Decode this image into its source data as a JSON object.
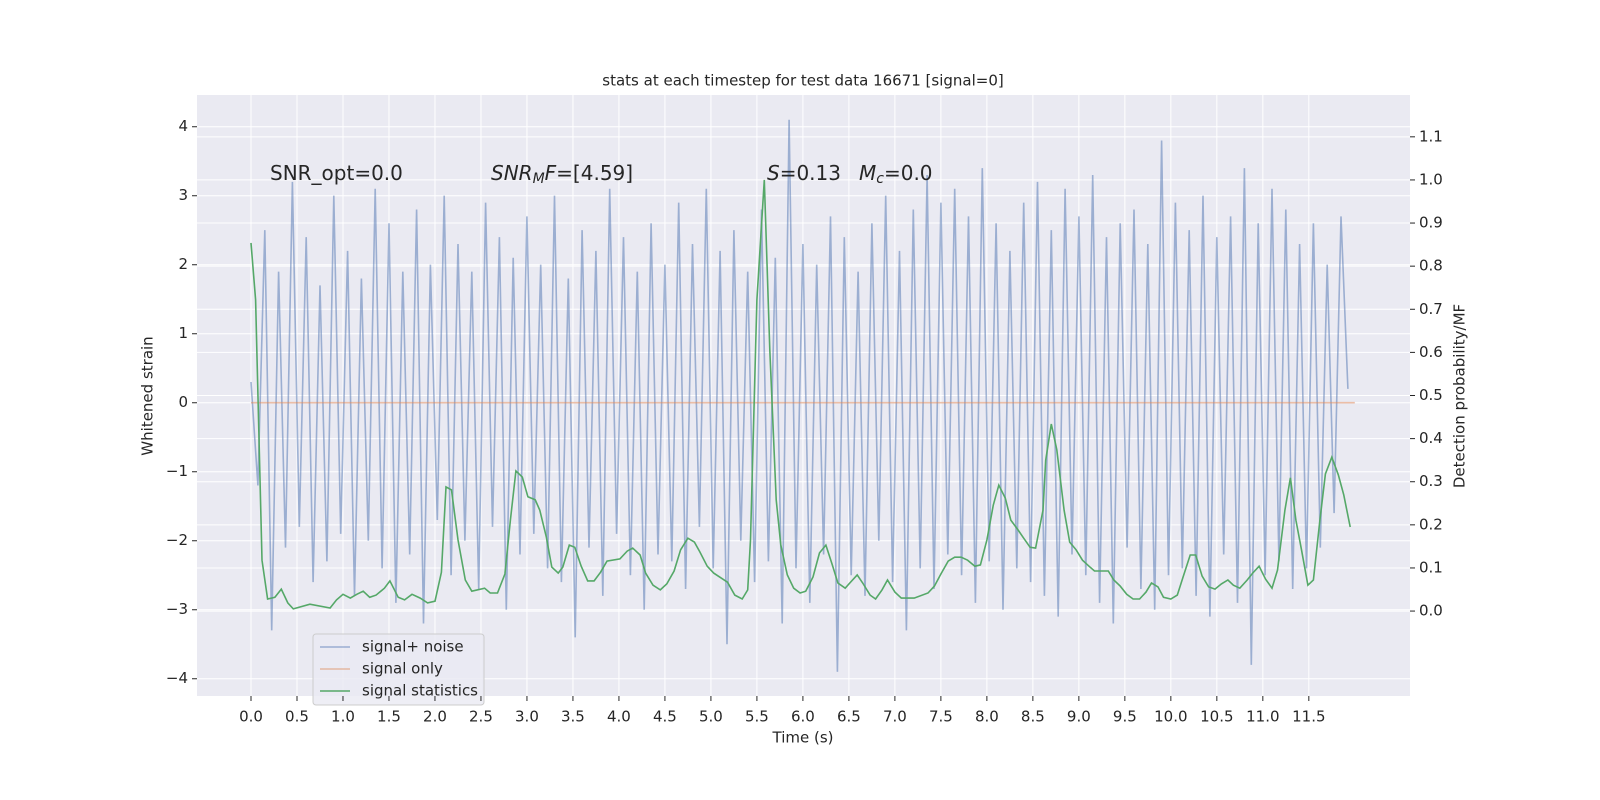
{
  "chart_data": {
    "type": "line",
    "title": "stats at each timestep for test data 16671 [signal=0]",
    "xlabel": "Time (s)",
    "ylabel": "Whitened strain",
    "y2label": "Detection probability/MF",
    "xlim": [
      -0.587,
      12.6
    ],
    "ylim": [
      -4.25,
      4.46
    ],
    "y2lim": [
      -0.197,
      1.197
    ],
    "grid": true,
    "xticks": [
      {
        "value": 0,
        "label": "0.0"
      },
      0.5,
      {
        "value": 1,
        "label": "1.0"
      },
      1.5,
      {
        "value": 2,
        "label": "2.0"
      },
      2.5,
      {
        "value": 3,
        "label": "3.0"
      },
      3.5,
      {
        "value": 4,
        "label": "4.0"
      },
      4.5,
      {
        "value": 5,
        "label": "5.0"
      },
      5.5,
      {
        "value": 6,
        "label": "6.0"
      },
      6.5,
      {
        "value": 7,
        "label": "7.0"
      },
      7.5,
      {
        "value": 8,
        "label": "8.0"
      },
      8.5,
      {
        "value": 9,
        "label": "9.0"
      },
      9.5,
      {
        "value": 10,
        "label": "10.0"
      },
      10.5,
      {
        "value": 11,
        "label": "11.0"
      },
      11.5
    ],
    "yticks": [
      {
        "value": -4,
        "label": "−4"
      },
      {
        "value": -3,
        "label": "−3"
      },
      {
        "value": -2,
        "label": "−2"
      },
      {
        "value": -1,
        "label": "−1"
      },
      0,
      1,
      2,
      3,
      4
    ],
    "y2ticks": [
      {
        "value": 0,
        "label": "0.0"
      },
      0.1,
      0.2,
      0.3,
      0.4,
      0.5,
      0.6,
      0.7,
      0.8,
      0.9,
      {
        "value": 1,
        "label": "1.0"
      },
      1.1
    ],
    "annotations": [
      [
        "SNR_opt=0.0"
      ],
      [
        "SNR",
        "M",
        "F",
        "=[4.59]"
      ],
      [
        "S",
        "=0.13"
      ],
      [
        "M",
        "c",
        "=0.0"
      ]
    ],
    "series": [
      {
        "name": "signal+ noise",
        "color": "#4c72b0",
        "opacity": 0.5,
        "x": [
          0,
          0.075,
          0.15,
          0.225,
          0.3,
          0.375,
          0.45,
          0.525,
          0.6,
          0.675,
          0.75,
          0.825,
          0.9,
          0.975,
          1.05,
          1.125,
          1.2,
          1.275,
          1.35,
          1.425,
          1.5,
          1.575,
          1.65,
          1.725,
          1.8,
          1.875,
          1.95,
          2.025,
          2.1,
          2.175,
          2.25,
          2.325,
          2.4,
          2.475,
          2.55,
          2.625,
          2.7,
          2.775,
          2.85,
          2.925,
          3,
          3.075,
          3.15,
          3.225,
          3.3,
          3.375,
          3.45,
          3.525,
          3.6,
          3.675,
          3.75,
          3.825,
          3.9,
          3.975,
          4.05,
          4.125,
          4.2,
          4.275,
          4.35,
          4.425,
          4.5,
          4.575,
          4.65,
          4.725,
          4.8,
          4.875,
          4.95,
          5.025,
          5.1,
          5.175,
          5.25,
          5.325,
          5.4,
          5.475,
          5.55,
          5.625,
          5.7,
          5.775,
          5.85,
          5.925,
          6,
          6.075,
          6.15,
          6.225,
          6.3,
          6.375,
          6.45,
          6.525,
          6.6,
          6.675,
          6.75,
          6.825,
          6.9,
          6.975,
          7.05,
          7.125,
          7.2,
          7.275,
          7.35,
          7.425,
          7.5,
          7.575,
          7.65,
          7.725,
          7.8,
          7.875,
          7.95,
          8.025,
          8.1,
          8.175,
          8.25,
          8.325,
          8.4,
          8.475,
          8.55,
          8.625,
          8.7,
          8.775,
          8.85,
          8.925,
          9,
          9.075,
          9.15,
          9.225,
          9.3,
          9.375,
          9.45,
          9.525,
          9.6,
          9.675,
          9.75,
          9.825,
          9.9,
          9.975,
          10.05,
          10.125,
          10.2,
          10.275,
          10.35,
          10.425,
          10.5,
          10.575,
          10.65,
          10.725,
          10.8,
          10.875,
          10.95,
          11.025,
          11.1,
          11.175,
          11.25,
          11.325,
          11.4,
          11.475,
          11.55,
          11.625,
          11.7,
          11.775,
          11.85,
          11.925
        ],
        "values": [
          0.3,
          -1.2,
          2.5,
          -3.3,
          1.9,
          -2.1,
          3.2,
          -1.8,
          2.4,
          -2.6,
          1.7,
          -2.3,
          3.0,
          -1.9,
          2.2,
          -2.8,
          1.8,
          -2.0,
          3.1,
          -2.4,
          2.6,
          -2.9,
          1.9,
          -2.2,
          2.8,
          -3.2,
          2.0,
          -1.7,
          3.0,
          -2.5,
          2.3,
          -2.0,
          1.9,
          -2.7,
          2.9,
          -1.8,
          2.4,
          -3.0,
          2.1,
          -2.2,
          2.7,
          -1.9,
          2.0,
          -2.4,
          3.0,
          -2.6,
          1.8,
          -3.4,
          2.5,
          -2.1,
          2.2,
          -2.8,
          3.1,
          -1.9,
          2.4,
          -2.5,
          1.9,
          -3.0,
          2.6,
          -2.2,
          2.0,
          -2.3,
          2.9,
          -2.7,
          2.3,
          -1.8,
          3.1,
          -2.4,
          2.2,
          -3.5,
          2.5,
          -2.0,
          1.9,
          -2.6,
          2.8,
          -2.3,
          2.1,
          -3.2,
          4.1,
          -2.4,
          2.3,
          -2.9,
          2.0,
          -2.2,
          2.7,
          -3.9,
          2.4,
          -2.5,
          1.9,
          -2.8,
          2.6,
          -2.0,
          3.0,
          -2.6,
          2.2,
          -3.3,
          2.8,
          -2.4,
          3.3,
          -2.7,
          2.9,
          -2.2,
          3.1,
          -2.5,
          2.7,
          -2.9,
          3.4,
          -2.3,
          2.6,
          -3.0,
          2.2,
          -2.4,
          2.9,
          -2.6,
          3.2,
          -2.8,
          2.5,
          -3.1,
          3.1,
          -2.2,
          2.7,
          -2.5,
          3.3,
          -2.9,
          2.4,
          -3.2,
          2.6,
          -2.1,
          2.8,
          -2.7,
          2.3,
          -3.0,
          3.8,
          -2.5,
          2.9,
          -2.4,
          2.5,
          -2.8,
          3.0,
          -3.1,
          2.4,
          -2.2,
          2.7,
          -2.9,
          3.4,
          -3.8,
          2.6,
          -2.5,
          3.1,
          -2.3,
          2.8,
          -2.7,
          2.3,
          -2.4,
          2.6,
          -2.1,
          2.0,
          -1.6,
          2.7,
          0.2
        ]
      },
      {
        "name": "signal only",
        "color": "#dd8452",
        "opacity": 0.5,
        "x": [
          0,
          12.0
        ],
        "values": [
          0,
          0
        ]
      },
      {
        "name": "signal statistics",
        "color": "#55a868",
        "opacity": 1,
        "axis": "y2",
        "x": [
          0,
          0.05,
          0.12,
          0.18,
          0.26,
          0.33,
          0.4,
          0.46,
          0.64,
          0.86,
          0.93,
          1.0,
          1.08,
          1.15,
          1.22,
          1.29,
          1.36,
          1.45,
          1.51,
          1.6,
          1.67,
          1.75,
          1.84,
          1.92,
          2.0,
          2.07,
          2.12,
          2.18,
          2.25,
          2.33,
          2.4,
          2.54,
          2.6,
          2.68,
          2.76,
          2.82,
          2.88,
          2.95,
          3.01,
          3.09,
          3.14,
          3.21,
          3.27,
          3.34,
          3.39,
          3.46,
          3.52,
          3.59,
          3.66,
          3.73,
          3.8,
          3.87,
          4.01,
          4.09,
          4.15,
          4.23,
          4.29,
          4.37,
          4.45,
          4.52,
          4.6,
          4.67,
          4.75,
          4.82,
          4.88,
          4.96,
          5.03,
          5.18,
          5.26,
          5.34,
          5.4,
          5.43,
          5.5,
          5.58,
          5.64,
          5.71,
          5.76,
          5.83,
          5.9,
          5.97,
          6.03,
          6.11,
          6.18,
          6.25,
          6.32,
          6.38,
          6.46,
          6.51,
          6.59,
          6.65,
          6.73,
          6.79,
          6.86,
          6.92,
          7.0,
          7.07,
          7.21,
          7.36,
          7.43,
          7.5,
          7.58,
          7.65,
          7.72,
          7.79,
          7.87,
          7.93,
          8.0,
          8.07,
          8.13,
          8.2,
          8.26,
          8.34,
          8.4,
          8.47,
          8.53,
          8.61,
          8.64,
          8.7,
          8.76,
          8.84,
          8.9,
          8.97,
          9.04,
          9.11,
          9.17,
          9.32,
          9.38,
          9.45,
          9.52,
          9.59,
          9.66,
          9.73,
          9.79,
          9.86,
          9.92,
          10.0,
          10.07,
          10.13,
          10.21,
          10.27,
          10.34,
          10.41,
          10.48,
          10.55,
          10.62,
          10.68,
          10.75,
          10.83,
          10.89,
          10.96,
          11.03,
          11.1,
          11.16,
          11.24,
          11.3,
          11.36,
          11.42,
          11.49,
          11.55,
          11.62,
          11.68,
          11.75,
          11.82,
          11.88,
          11.95
        ],
        "values": [
          0.854,
          0.722,
          0.118,
          0.028,
          0.032,
          0.051,
          0.019,
          0.005,
          0.016,
          0.007,
          0.026,
          0.039,
          0.03,
          0.039,
          0.046,
          0.032,
          0.037,
          0.053,
          0.07,
          0.032,
          0.026,
          0.039,
          0.03,
          0.019,
          0.023,
          0.09,
          0.288,
          0.281,
          0.165,
          0.072,
          0.046,
          0.053,
          0.042,
          0.042,
          0.086,
          0.211,
          0.325,
          0.311,
          0.265,
          0.258,
          0.234,
          0.172,
          0.102,
          0.088,
          0.102,
          0.153,
          0.148,
          0.104,
          0.07,
          0.07,
          0.09,
          0.116,
          0.121,
          0.139,
          0.146,
          0.13,
          0.088,
          0.06,
          0.049,
          0.063,
          0.093,
          0.142,
          0.169,
          0.16,
          0.137,
          0.104,
          0.088,
          0.067,
          0.037,
          0.028,
          0.049,
          0.165,
          0.722,
          1.0,
          0.606,
          0.258,
          0.153,
          0.084,
          0.053,
          0.042,
          0.046,
          0.079,
          0.135,
          0.153,
          0.107,
          0.065,
          0.053,
          0.065,
          0.084,
          0.065,
          0.037,
          0.028,
          0.049,
          0.072,
          0.044,
          0.03,
          0.03,
          0.042,
          0.058,
          0.086,
          0.116,
          0.125,
          0.125,
          0.118,
          0.104,
          0.107,
          0.165,
          0.246,
          0.292,
          0.262,
          0.211,
          0.188,
          0.169,
          0.148,
          0.146,
          0.234,
          0.35,
          0.434,
          0.374,
          0.234,
          0.16,
          0.142,
          0.118,
          0.104,
          0.093,
          0.093,
          0.072,
          0.058,
          0.039,
          0.028,
          0.028,
          0.044,
          0.065,
          0.056,
          0.032,
          0.028,
          0.037,
          0.077,
          0.13,
          0.13,
          0.081,
          0.056,
          0.051,
          0.063,
          0.072,
          0.06,
          0.053,
          0.072,
          0.088,
          0.104,
          0.074,
          0.053,
          0.095,
          0.234,
          0.309,
          0.211,
          0.142,
          0.06,
          0.072,
          0.211,
          0.318,
          0.357,
          0.316,
          0.269,
          0.195
        ]
      }
    ]
  }
}
